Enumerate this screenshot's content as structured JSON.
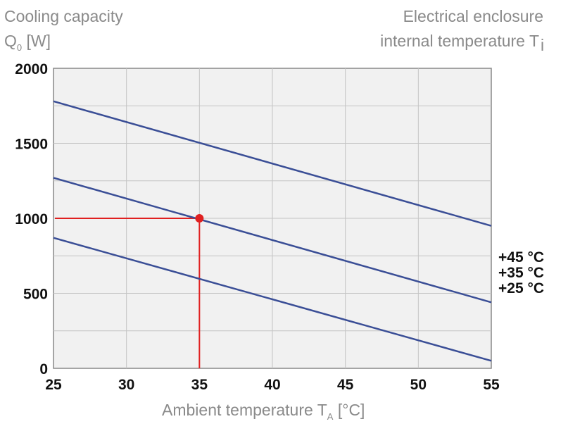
{
  "chart_data": {
    "type": "line",
    "title_left": {
      "line1": "Cooling capacity",
      "line2_main": "Q",
      "line2_sub": "0",
      "line2_rest": " [W]"
    },
    "title_right": {
      "line1": "Electrical enclosure",
      "line2_main": "internal temperature T",
      "line2_sub": "i"
    },
    "xlabel": {
      "main": "Ambient temperature T",
      "sub": "A",
      "rest": " [°C]"
    },
    "xlim": [
      25,
      55
    ],
    "ylim": [
      0,
      2000
    ],
    "xticks": [
      "25",
      "30",
      "35",
      "40",
      "45",
      "50",
      "55"
    ],
    "yticks": [
      "0",
      "500",
      "1000",
      "1500",
      "2000"
    ],
    "grid": true,
    "series": [
      {
        "name": "+45 °C",
        "x": [
          25,
          55
        ],
        "y": [
          1780,
          950
        ],
        "color": "#3a4e96"
      },
      {
        "name": "+35 °C",
        "x": [
          25,
          55
        ],
        "y": [
          1270,
          440
        ],
        "color": "#3a4e96"
      },
      {
        "name": "+25 °C",
        "x": [
          25,
          55
        ],
        "y": [
          870,
          50
        ],
        "color": "#3a4e96"
      }
    ],
    "legend_placement": "right",
    "annotation": {
      "x": 35,
      "y": 1000,
      "color": "#e02020"
    }
  }
}
